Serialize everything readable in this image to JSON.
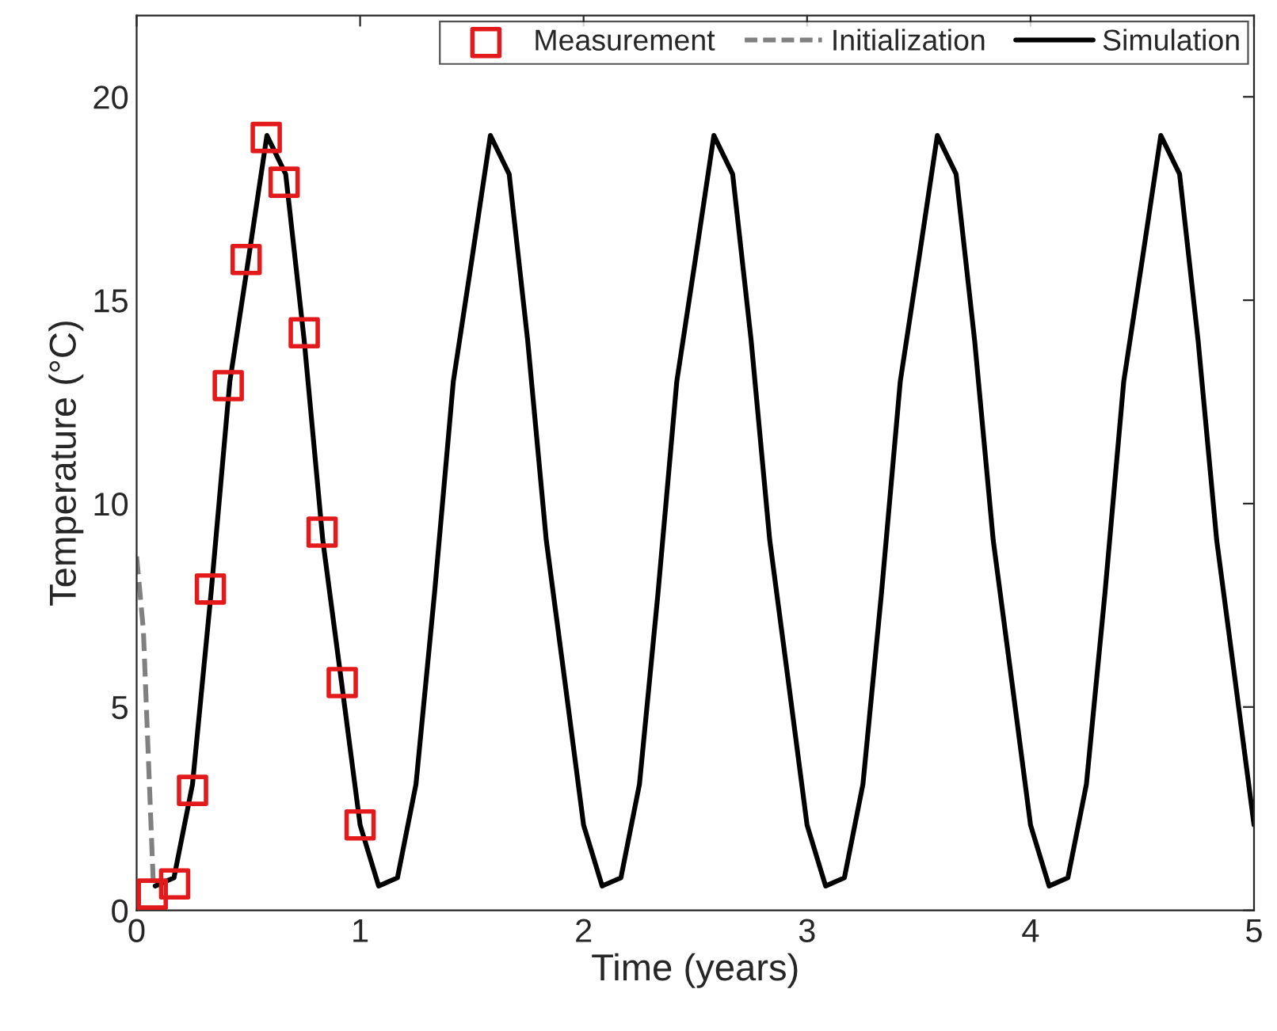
{
  "chart_data": {
    "type": "line",
    "xlabel": "Time (years)",
    "ylabel": "Temperature (°C)",
    "xlim": [
      0,
      5
    ],
    "ylim": [
      0,
      22
    ],
    "xticks": [
      0,
      1,
      2,
      3,
      4,
      5
    ],
    "yticks": [
      0,
      5,
      10,
      15,
      20
    ],
    "grid": false,
    "legend": "top right",
    "series": [
      {
        "name": "Measurement",
        "type": "scatter",
        "marker": "square",
        "color": "#e31a1c",
        "x": [
          0.07,
          0.17,
          0.25,
          0.33,
          0.41,
          0.49,
          0.58,
          0.66,
          0.75,
          0.83,
          0.92,
          1.0
        ],
        "values": [
          0.4,
          0.65,
          2.95,
          7.9,
          12.9,
          16.0,
          19.0,
          17.9,
          14.2,
          9.3,
          5.6,
          2.1
        ]
      },
      {
        "name": "Initialization",
        "line_style": "dashed",
        "marker": "none",
        "color": "#808080",
        "x": [
          0,
          0.03,
          0.05,
          0.075
        ],
        "values": [
          8.7,
          6.9,
          4.1,
          0.6
        ]
      },
      {
        "name": "Simulation",
        "line_style": "solid",
        "marker": "none",
        "color": "#000000",
        "x": [
          0.083,
          0.167,
          0.25,
          0.333,
          0.417,
          0.5,
          0.583,
          0.667,
          0.75,
          0.833,
          0.917,
          1.0,
          1.083,
          1.167,
          1.25,
          1.333,
          1.417,
          1.5,
          1.583,
          1.667,
          1.75,
          1.833,
          1.917,
          2.0,
          2.083,
          2.167,
          2.25,
          2.333,
          2.417,
          2.5,
          2.583,
          2.667,
          2.75,
          2.833,
          2.917,
          3.0,
          3.083,
          3.167,
          3.25,
          3.333,
          3.417,
          3.5,
          3.583,
          3.667,
          3.75,
          3.833,
          3.917,
          4.0,
          4.083,
          4.167,
          4.25,
          4.333,
          4.417,
          4.5,
          4.583,
          4.667,
          4.75,
          4.833,
          4.917,
          5.0
        ],
        "values": [
          0.6,
          0.8,
          3.1,
          7.8,
          13.0,
          16.0,
          19.05,
          18.1,
          14.0,
          9.1,
          5.6,
          2.1,
          0.6,
          0.8,
          3.1,
          7.8,
          13.0,
          16.0,
          19.05,
          18.1,
          14.0,
          9.1,
          5.6,
          2.1,
          0.6,
          0.8,
          3.1,
          7.8,
          13.0,
          16.0,
          19.05,
          18.1,
          14.0,
          9.1,
          5.6,
          2.1,
          0.6,
          0.8,
          3.1,
          7.8,
          13.0,
          16.0,
          19.05,
          18.1,
          14.0,
          9.1,
          5.6,
          2.1,
          0.6,
          0.8,
          3.1,
          7.8,
          13.0,
          16.0,
          19.05,
          18.1,
          14.0,
          9.1,
          5.6,
          2.1
        ]
      }
    ]
  }
}
